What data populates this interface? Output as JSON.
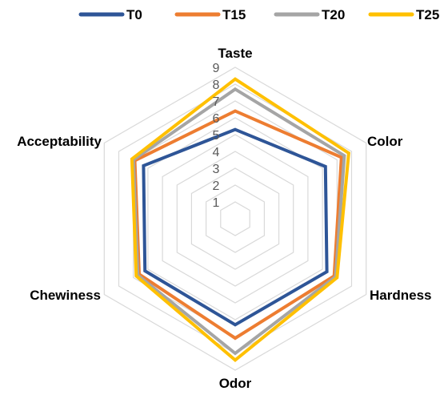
{
  "chart_data": {
    "type": "radar",
    "title": "",
    "axes": [
      "Taste",
      "Color",
      "Hardness",
      "Odor",
      "Chewiness",
      "Acceptability"
    ],
    "rlim": [
      0,
      9
    ],
    "ticks": [
      "1",
      "2",
      "3",
      "4",
      "5",
      "6",
      "7",
      "8",
      "9"
    ],
    "grid": true,
    "legend_position": "top",
    "series": [
      {
        "name": "T0",
        "color": "#2E5597",
        "values": [
          5.3,
          6.2,
          6.3,
          6.3,
          6.2,
          6.3
        ]
      },
      {
        "name": "T15",
        "color": "#ED7D31",
        "values": [
          6.4,
          7.3,
          6.8,
          7.1,
          6.6,
          6.9
        ]
      },
      {
        "name": "T20",
        "color": "#A5A5A5",
        "values": [
          7.7,
          7.5,
          6.9,
          8.0,
          6.7,
          7.0
        ]
      },
      {
        "name": "T25",
        "color": "#FFC000",
        "values": [
          8.3,
          7.8,
          7.0,
          8.4,
          6.8,
          7.1
        ]
      }
    ]
  }
}
